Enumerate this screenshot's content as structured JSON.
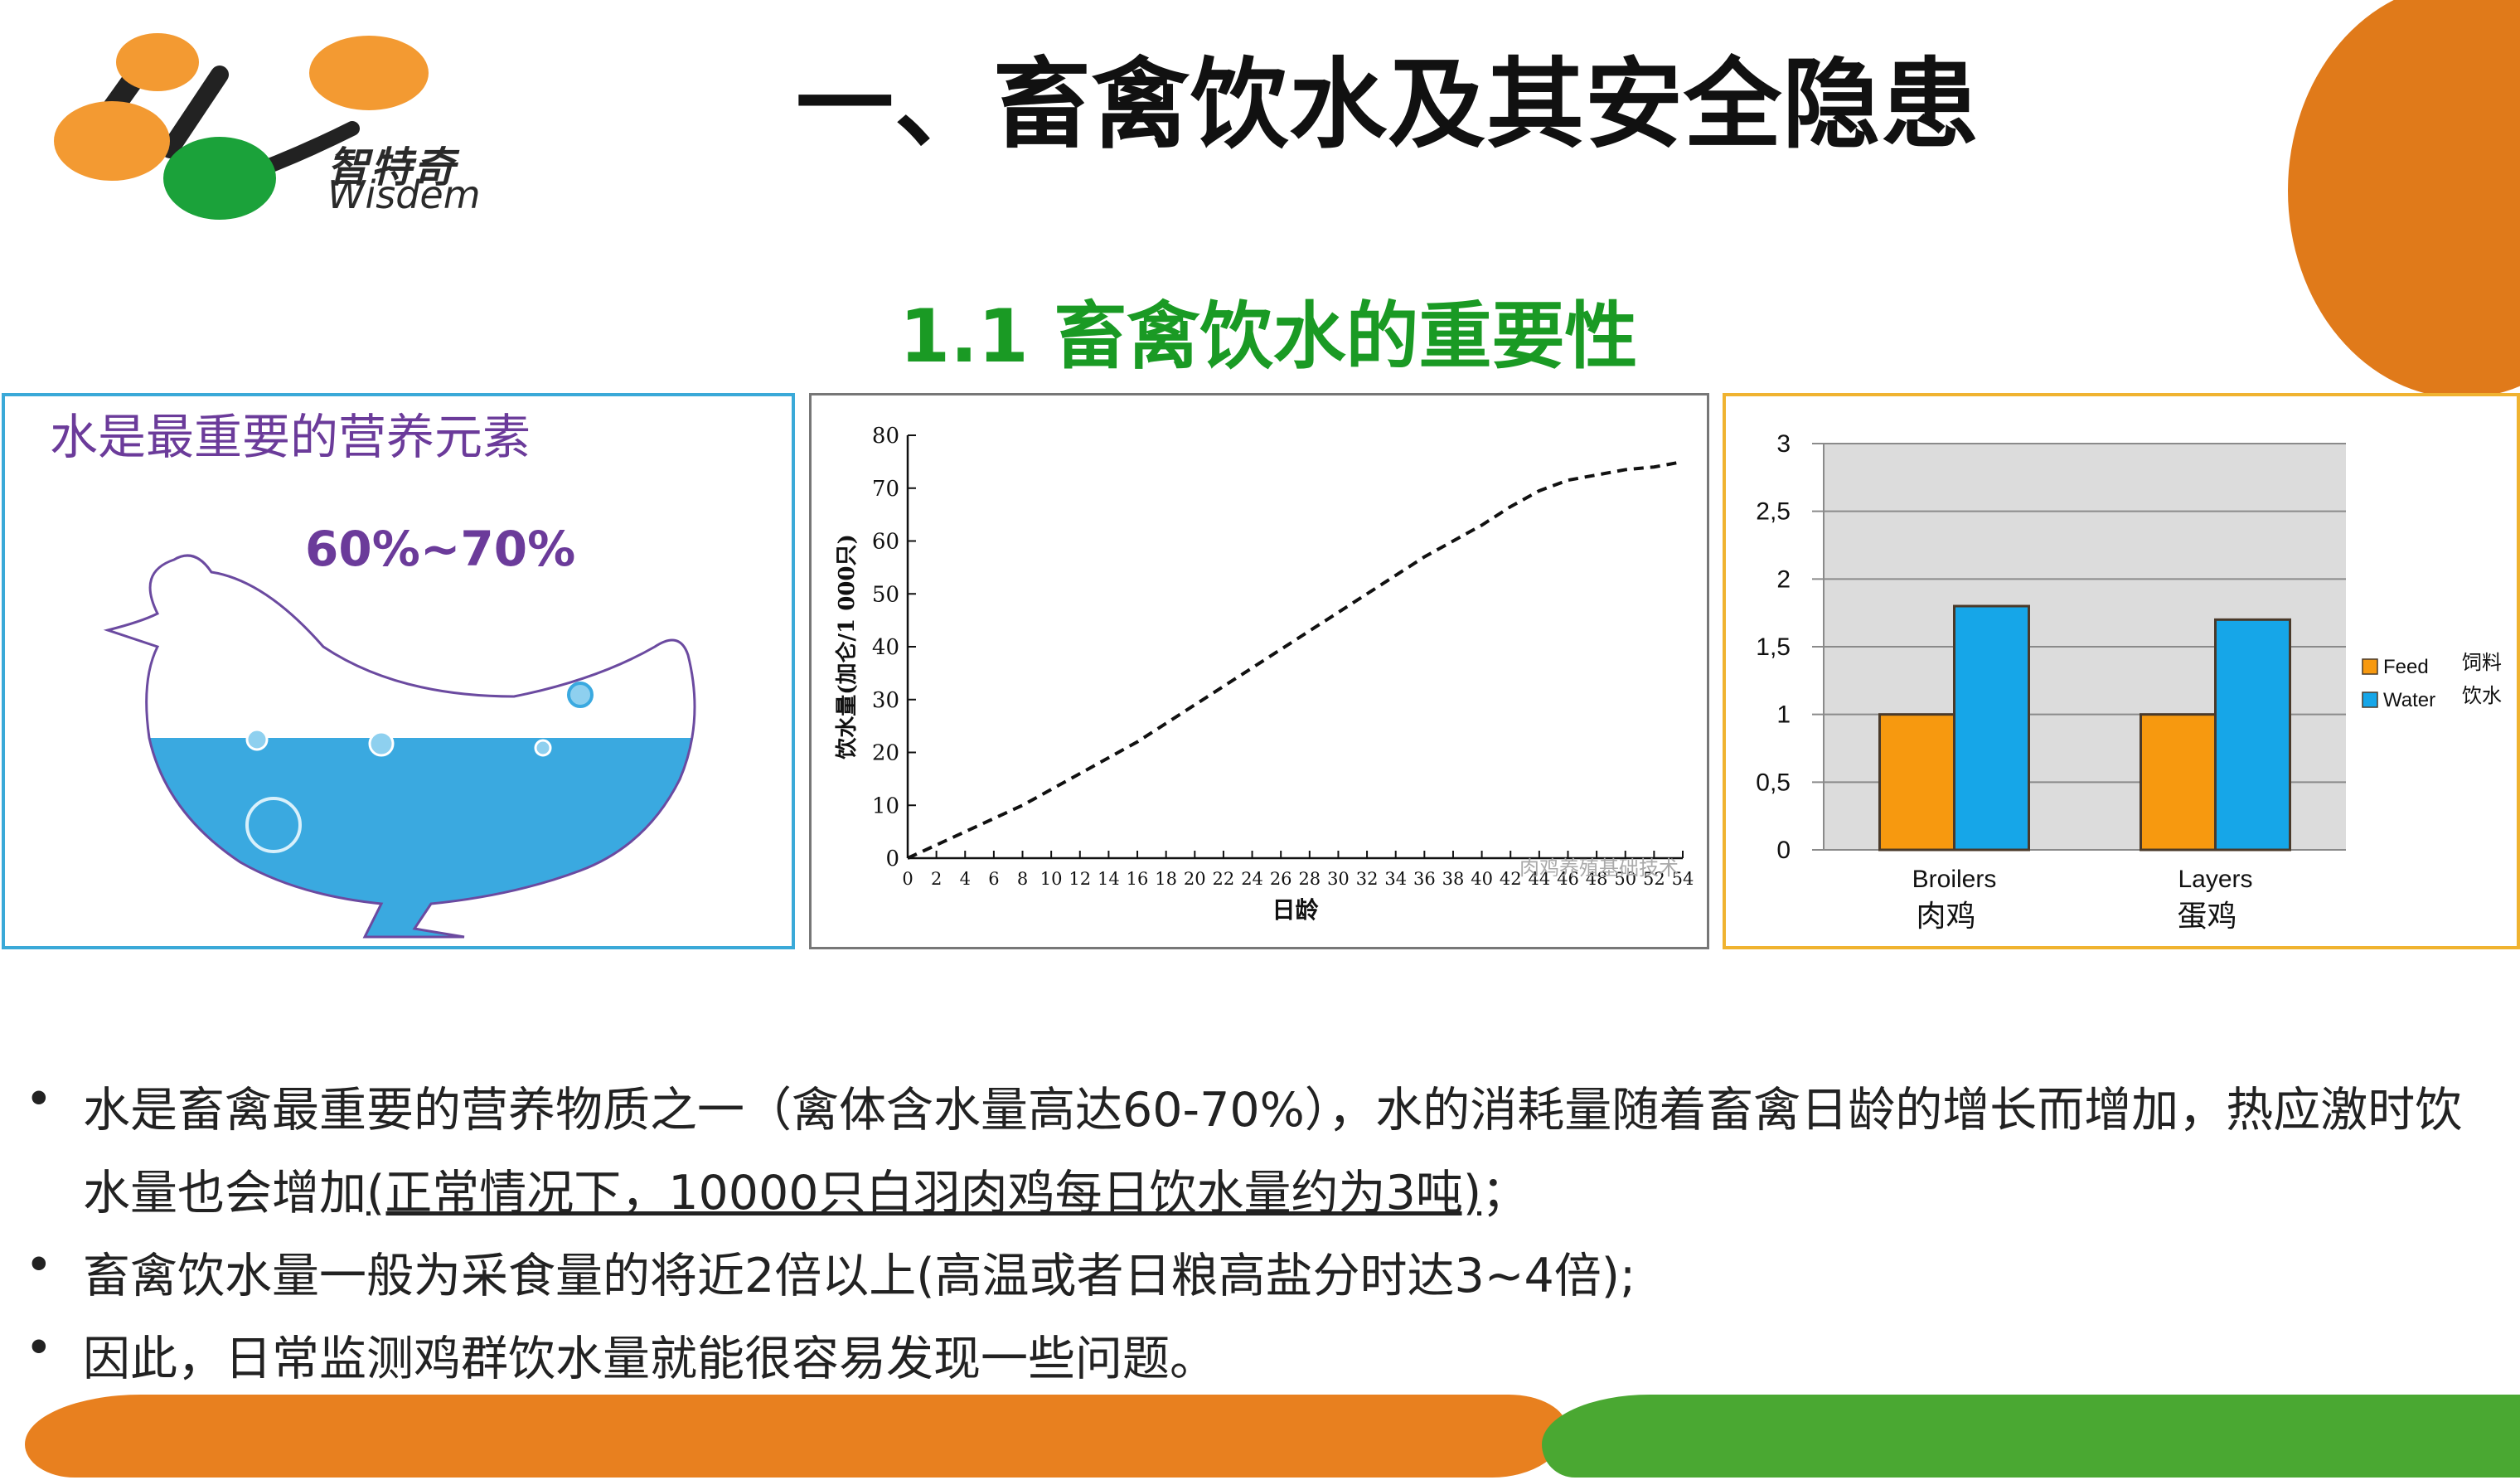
{
  "header": {
    "title": "一、畜禽饮水及其安全隐患",
    "subtitle": "1.1 畜禽饮水的重要性"
  },
  "logo": {
    "text_cn": "智特奇",
    "text_en": "Wisdem"
  },
  "panel_water": {
    "title": "水是最重要的营养元素",
    "percent": "60%~70%"
  },
  "colors": {
    "accent_orange": "#e07a1a",
    "accent_green": "#1a9a24",
    "title_purple": "#6b3b9a",
    "water_blue": "#3aa9e0"
  },
  "chart_data": [
    {
      "type": "line",
      "ylabel": "饮水量(加仑/1 000只)",
      "xlabel": "日龄",
      "xlim": [
        0,
        54
      ],
      "ylim": [
        0,
        80
      ],
      "xticks": [
        0,
        2,
        4,
        6,
        8,
        10,
        12,
        14,
        16,
        18,
        20,
        22,
        24,
        26,
        28,
        30,
        32,
        34,
        36,
        38,
        40,
        42,
        44,
        46,
        48,
        50,
        52,
        54
      ],
      "yticks": [
        0,
        10,
        20,
        30,
        40,
        50,
        60,
        70,
        80
      ],
      "series": [
        {
          "style": "dashed",
          "x": [
            0,
            2,
            4,
            6,
            8,
            10,
            12,
            14,
            16,
            18,
            20,
            22,
            24,
            26,
            28,
            30,
            32,
            34,
            36,
            38,
            40,
            42,
            44,
            46,
            48,
            50,
            52,
            54
          ],
          "y": [
            0,
            2.5,
            5,
            7.5,
            10,
            13,
            16,
            19,
            22,
            25.5,
            29,
            32.5,
            36,
            39.5,
            43,
            46.5,
            50,
            53.5,
            57,
            60,
            63,
            66.5,
            69.5,
            71.5,
            72.5,
            73.5,
            74,
            75
          ]
        }
      ],
      "watermark": "肉鸡养殖基础技术"
    },
    {
      "type": "bar",
      "categories": [
        "Broilers",
        "Layers"
      ],
      "categories_cn": [
        "肉鸡",
        "蛋鸡"
      ],
      "ylim": [
        0,
        3
      ],
      "yticks": [
        "0",
        "0,5",
        "1",
        "1,5",
        "2",
        "2,5",
        "3"
      ],
      "grid": true,
      "legend_position": "right",
      "series": [
        {
          "name": "Feed",
          "name_cn": "饲料",
          "color": "#f7990f",
          "values": [
            1,
            1
          ]
        },
        {
          "name": "Water",
          "name_cn": "饮水",
          "color": "#16a6e8",
          "values": [
            1.8,
            1.7
          ]
        }
      ]
    }
  ],
  "bullets": {
    "b1_line1": "水是畜禽最重要的营养物质之一（禽体含水量高达60-70%），水的消耗量随着畜禽日龄的增长而增加，热应激时饮",
    "b1_line2_plain": "水量也会增加",
    "b1_line2_underlined": "(正常情况下，10000只白羽肉鸡每日饮水量约为3吨)",
    "b1_line2_tail": "；",
    "b2": "畜禽饮水量一般为采食量的将近2倍以上(高温或者日粮高盐分时达3~4倍);",
    "b3": "因此，日常监测鸡群饮水量就能很容易发现一些问题。",
    "marker": "•"
  }
}
